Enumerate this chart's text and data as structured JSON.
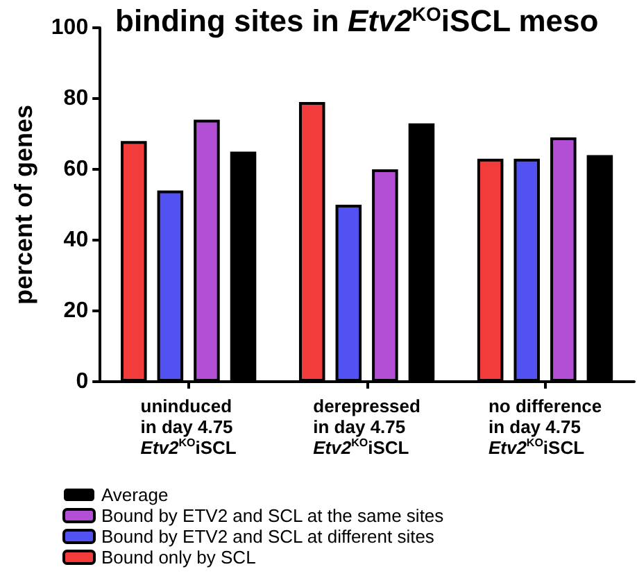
{
  "chart_data": {
    "type": "bar",
    "title": "binding sites in Etv2$^{KO}$iSCL meso",
    "ylabel": "percent of genes",
    "categories": [
      "uninduced\nin day 4.75\nEtv2$^{KO}$iSCL",
      "derepressed\nin day 4.75\nEtv2$^{KO}$iSCL",
      "no difference\nin day 4.75\nEtv2$^{KO}$iSCL"
    ],
    "series": [
      {
        "name": "Bound only by SCL",
        "color": "#f23c3c",
        "values": [
          68,
          79,
          63
        ]
      },
      {
        "name": "Bound by ETV2 and SCL at different sites",
        "color": "#5252f2",
        "values": [
          54,
          50,
          63
        ]
      },
      {
        "name": "Bound by ETV2 and SCL at the same sites",
        "color": "#b24fd4",
        "values": [
          74,
          60,
          69
        ]
      },
      {
        "name": "Average",
        "color": "#000000",
        "values": [
          65,
          73,
          64
        ]
      }
    ],
    "ylim": [
      0,
      100
    ],
    "yticks": [
      0,
      20,
      40,
      60,
      80,
      100
    ],
    "grid": false,
    "legend": "bottom left"
  }
}
